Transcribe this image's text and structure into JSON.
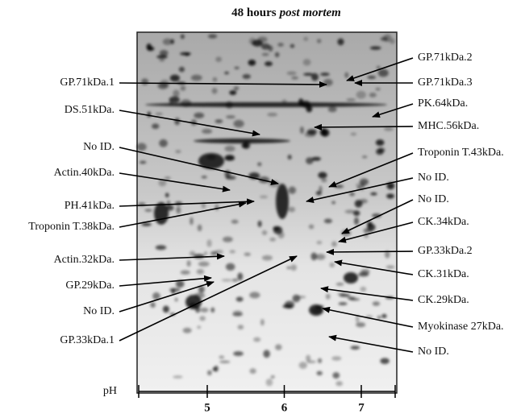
{
  "title": {
    "text": "48 hours",
    "italic": "post mortem"
  },
  "labels": {
    "left": [
      "GP.71kDa.1",
      "DS.51kDa.",
      "No ID.",
      "Actin.40kDa.",
      "PH.41kDa.",
      "Troponin T.38kDa.",
      "Actin.32kDa.",
      "GP.29kDa.",
      "No ID.",
      "GP.33kDa.1"
    ],
    "right": [
      "GP.71kDa.2",
      "GP.71kDa.3",
      "PK.64kDa.",
      "MHC.56kDa.",
      "Troponin T.43kDa.",
      "No ID.",
      "No ID.",
      "CK.34kDa.",
      "GP.33kDa.2",
      "CK.31kDa.",
      "CK.29kDa.",
      "Myokinase 27kDa.",
      "No ID."
    ]
  },
  "axis": {
    "label": "pH",
    "ticks": [
      5,
      6,
      7
    ]
  }
}
